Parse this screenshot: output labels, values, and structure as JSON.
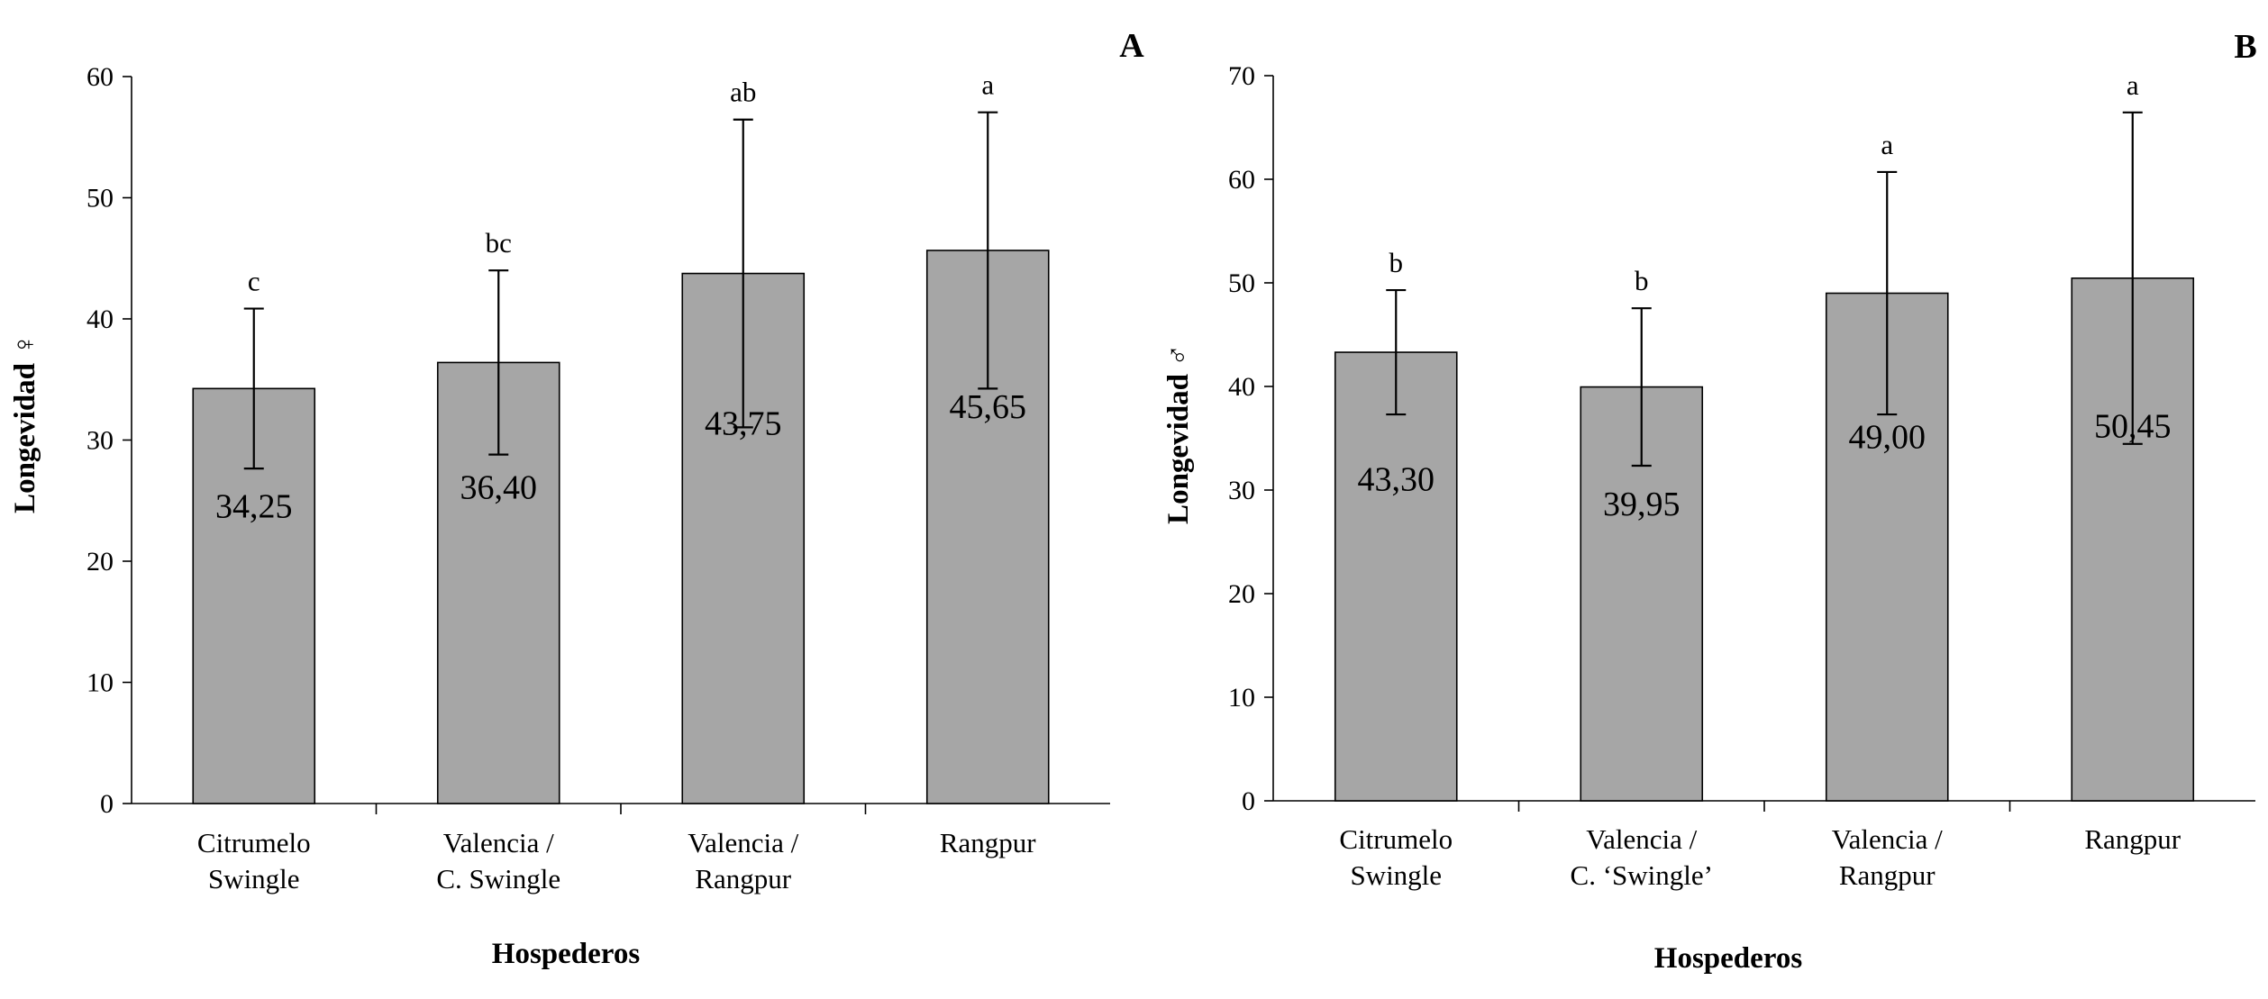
{
  "chart_data": [
    {
      "type": "bar",
      "panel": "A",
      "ylabel": "Longevidad ♀",
      "xlabel": "Hospederos",
      "ylim": [
        0,
        60
      ],
      "yticks": [
        0,
        10,
        20,
        30,
        40,
        50,
        60
      ],
      "categories": [
        [
          "Citrumelo",
          "Swingle"
        ],
        [
          "Valencia /",
          "C. Swingle"
        ],
        [
          "Valencia /",
          "Rangpur"
        ],
        [
          "Rangpur"
        ]
      ],
      "values": [
        34.25,
        36.4,
        43.75,
        45.65
      ],
      "value_labels": [
        "34,25",
        "36,40",
        "43,75",
        "45,65"
      ],
      "error": [
        6.6,
        7.6,
        12.7,
        11.4
      ],
      "significance": [
        "c",
        "bc",
        "ab",
        "a"
      ]
    },
    {
      "type": "bar",
      "panel": "B",
      "ylabel": "Longevidad ♂",
      "xlabel": "Hospederos",
      "ylim": [
        0,
        70
      ],
      "yticks": [
        0,
        10,
        20,
        30,
        40,
        50,
        60,
        70
      ],
      "categories": [
        [
          "Citrumelo",
          "Swingle"
        ],
        [
          "Valencia /",
          "C. ‘Swingle’"
        ],
        [
          "Valencia /",
          "Rangpur"
        ],
        [
          "Rangpur"
        ]
      ],
      "values": [
        43.3,
        39.95,
        49.0,
        50.45
      ],
      "value_labels": [
        "43,30",
        "39,95",
        "49,00",
        "50,45"
      ],
      "error": [
        6.0,
        7.6,
        11.7,
        16.0
      ],
      "significance": [
        "b",
        "b",
        "a",
        "a"
      ]
    }
  ]
}
